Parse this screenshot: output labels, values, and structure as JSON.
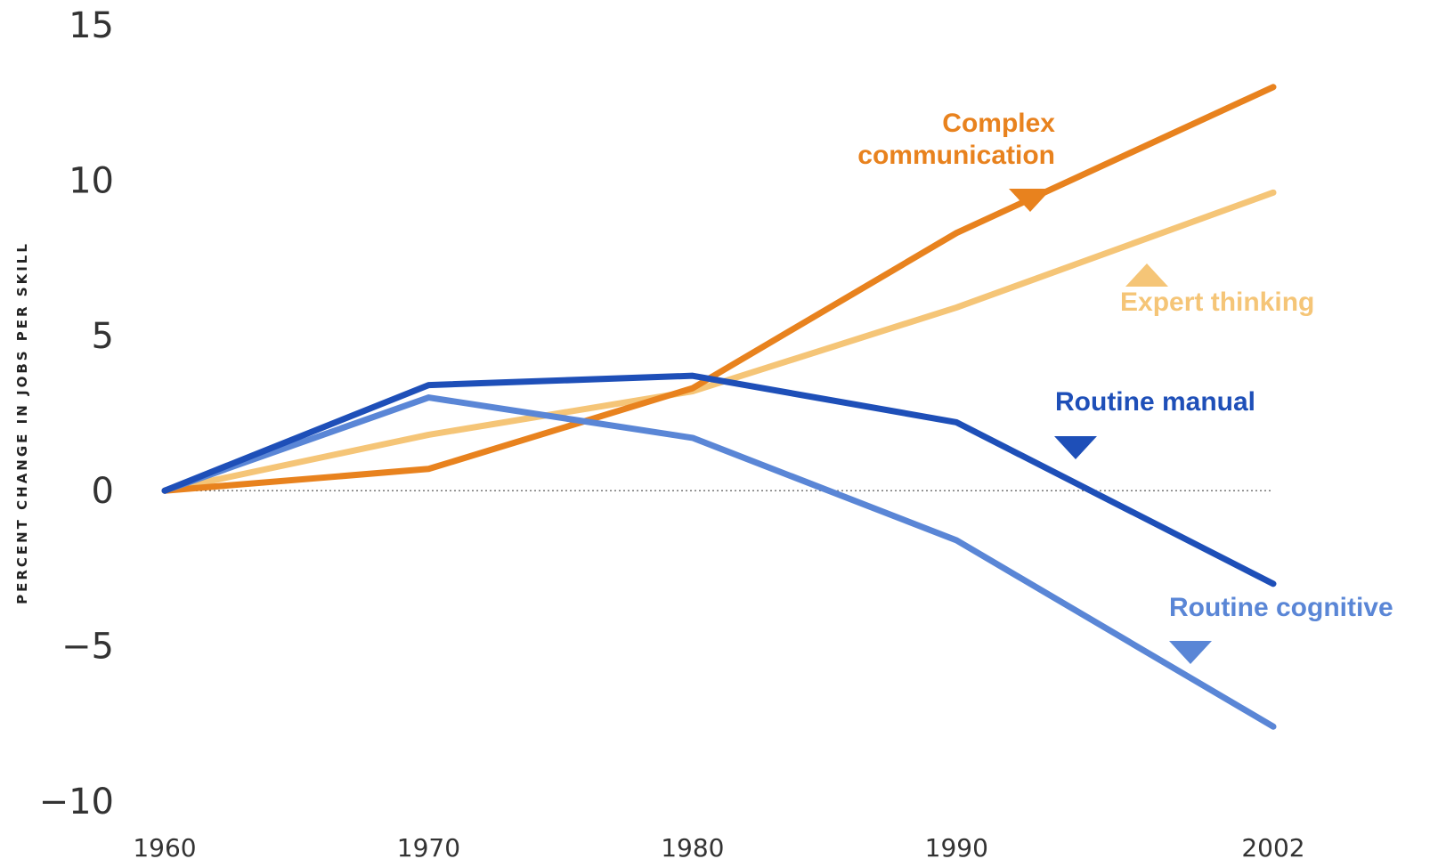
{
  "chart_data": {
    "type": "line",
    "title": "",
    "xlabel": "",
    "ylabel": "PERCENT CHANGE IN JOBS PER SKILL",
    "x": [
      1960,
      1970,
      1980,
      1990,
      2002
    ],
    "x_tick_labels": [
      "1960",
      "1970",
      "1980",
      "1990",
      "2002"
    ],
    "y_ticks": [
      15,
      10,
      5,
      0,
      -5,
      -10
    ],
    "y_tick_labels": [
      "15",
      "10",
      "5",
      "0",
      "−5",
      "−10"
    ],
    "ylim": [
      -10,
      15
    ],
    "zero_line": true,
    "grid": false,
    "legend": "inline labels with pointer triangles",
    "series": [
      {
        "name": "Complex\ncommunication",
        "label_lines": [
          "Complex",
          "communication"
        ],
        "color": "#e8821e",
        "values": [
          0,
          0.7,
          3.3,
          8.3,
          13.0
        ]
      },
      {
        "name": "Expert thinking",
        "label_lines": [
          "Expert thinking"
        ],
        "color": "#f5c577",
        "values": [
          0,
          1.8,
          3.2,
          5.9,
          9.6
        ]
      },
      {
        "name": "Routine manual",
        "label_lines": [
          "Routine manual"
        ],
        "color": "#1e4fb8",
        "values": [
          0,
          3.4,
          3.7,
          2.2,
          -3.0
        ]
      },
      {
        "name": "Routine cognitive",
        "label_lines": [
          "Routine cognitive"
        ],
        "color": "#5a86d6",
        "values": [
          0,
          3.0,
          1.7,
          -1.6,
          -7.6
        ]
      }
    ]
  }
}
